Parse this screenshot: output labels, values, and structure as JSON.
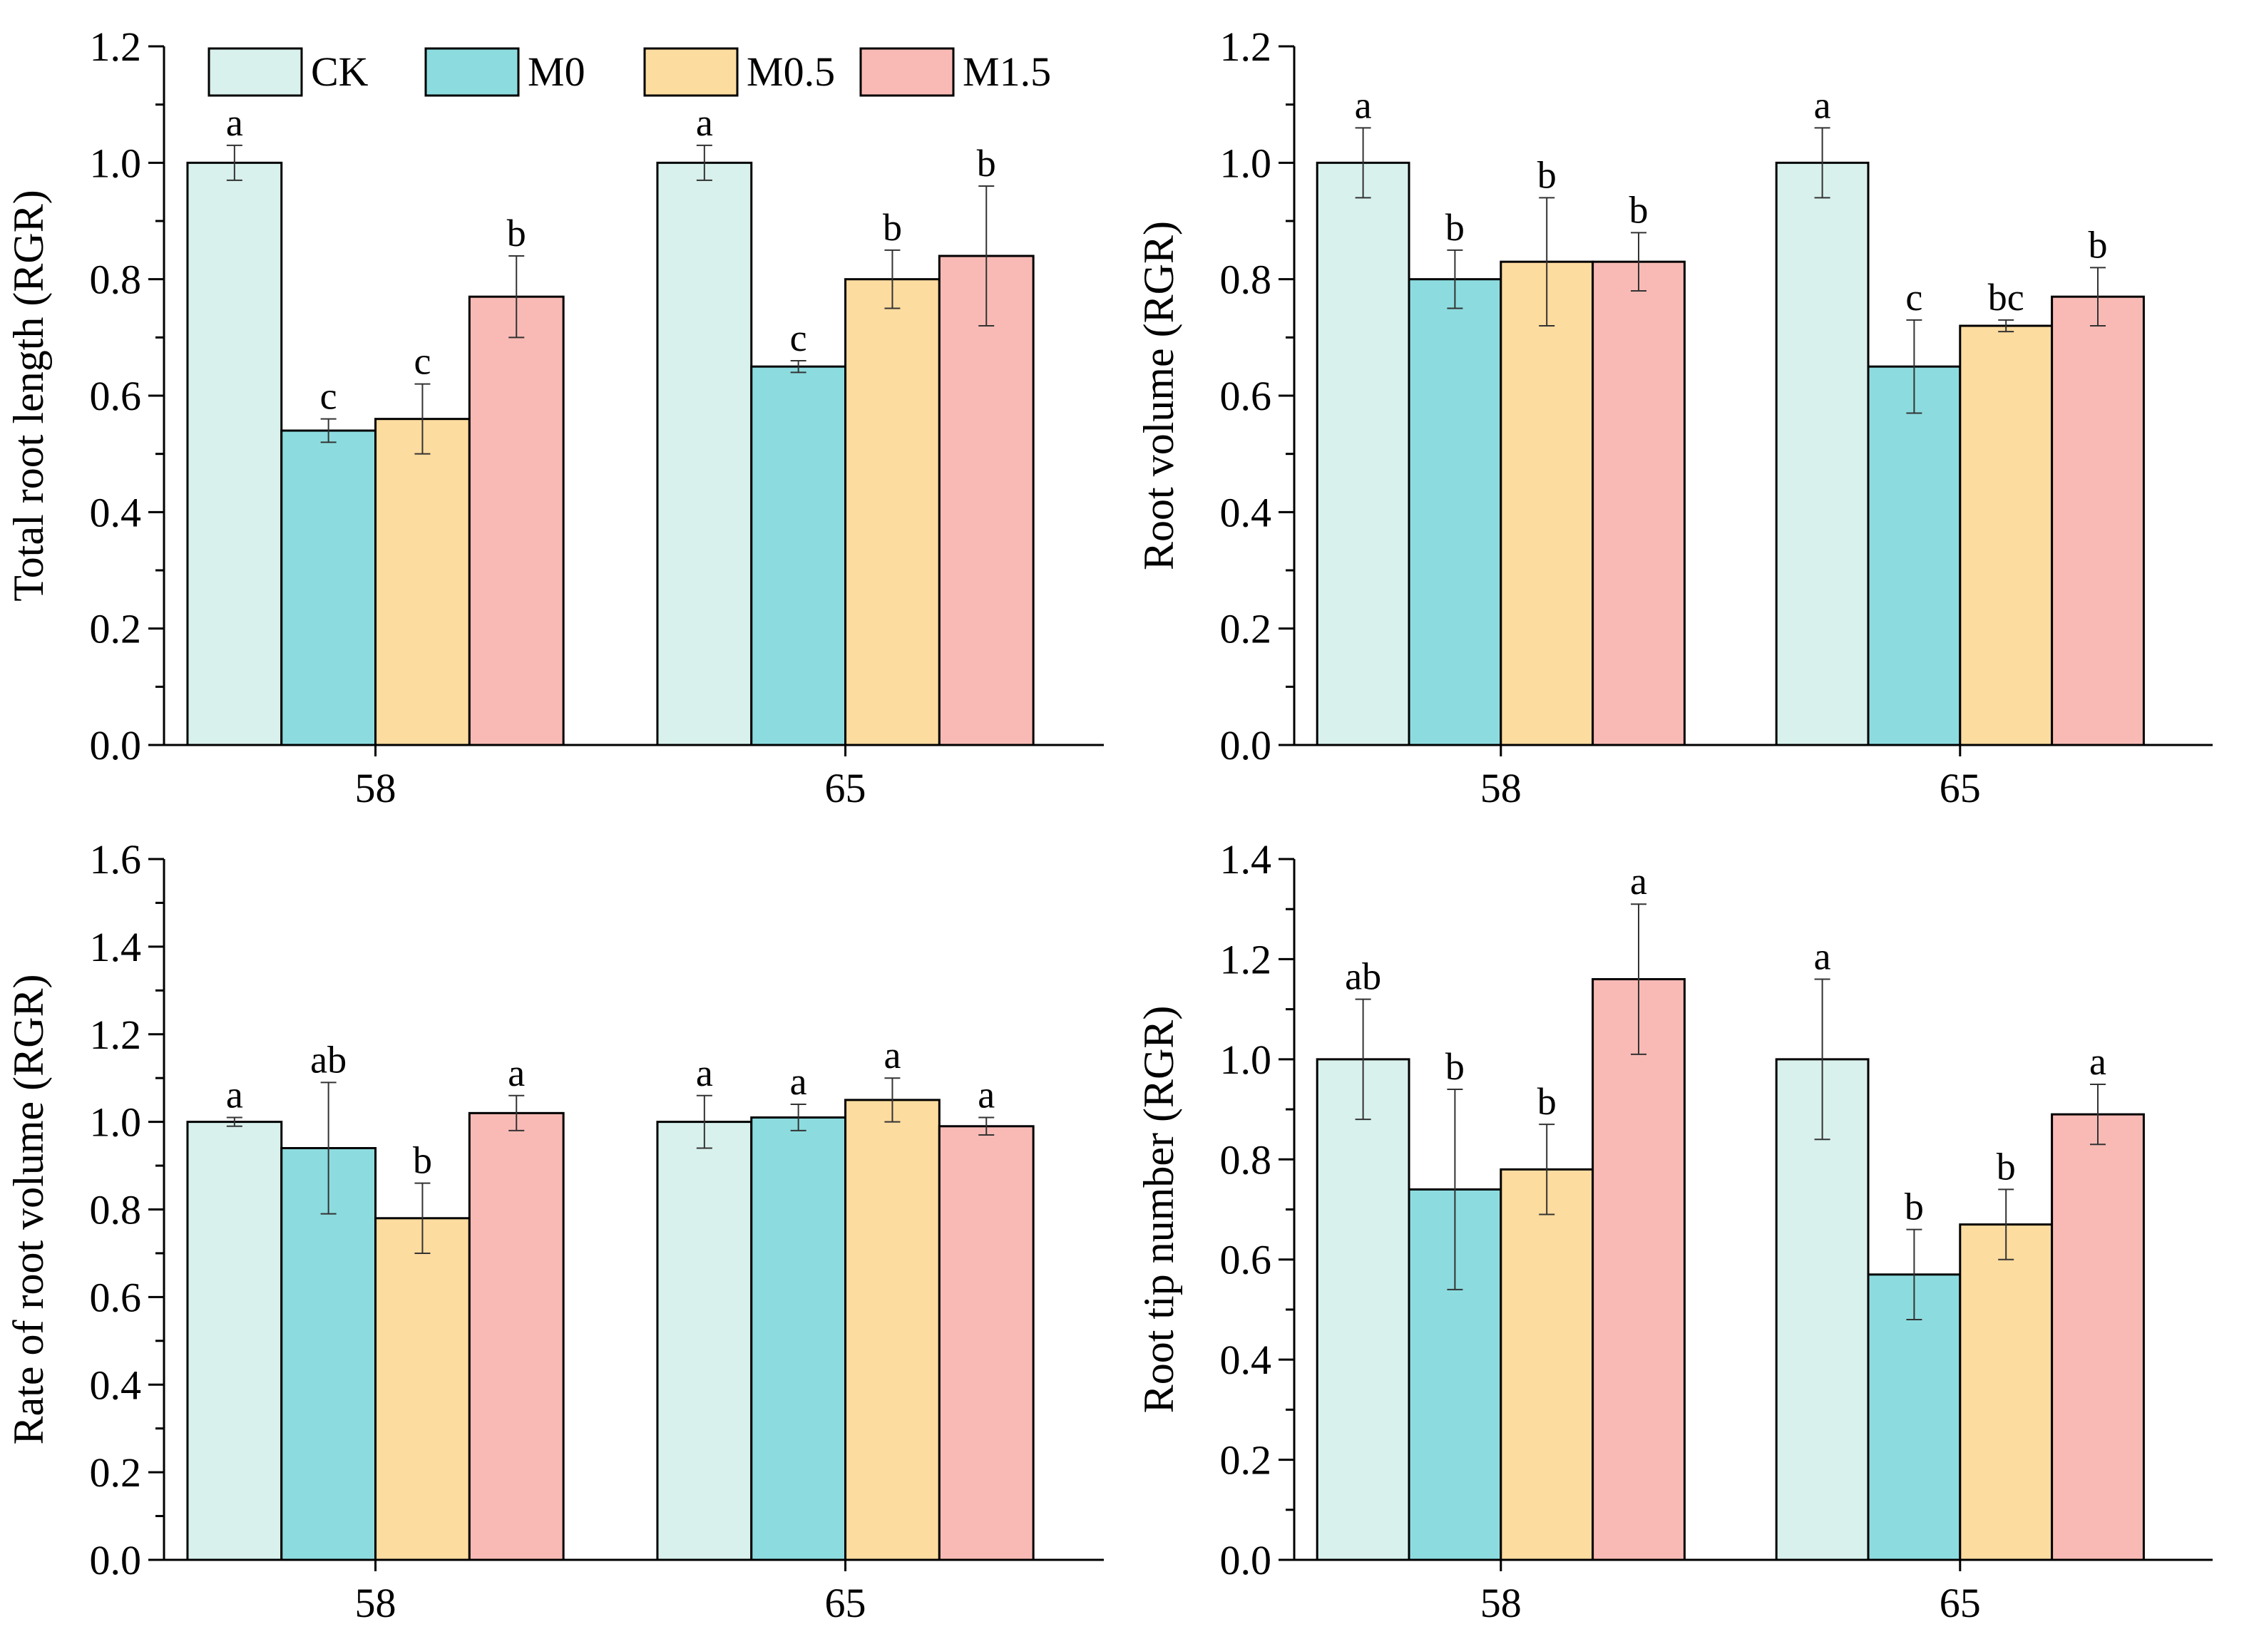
{
  "legend": {
    "items": [
      {
        "name": "CK",
        "color": "#d8f1ec"
      },
      {
        "name": "M0",
        "color": "#8cdcdf"
      },
      {
        "name": "M0.5",
        "color": "#fddc9f"
      },
      {
        "name": "M1.5",
        "color": "#f9bab5"
      }
    ]
  },
  "chart_data": [
    {
      "type": "bar",
      "ylabel": "Total root length (RGR)",
      "ylim": [
        0,
        1.2
      ],
      "yticks": [
        "0.0",
        "0.2",
        "0.4",
        "0.6",
        "0.8",
        "1.0",
        "1.2"
      ],
      "categories": [
        "58",
        "65"
      ],
      "series": [
        {
          "name": "CK",
          "values": [
            1.0,
            1.0
          ],
          "errors": [
            0.03,
            0.03
          ],
          "labels": [
            "a",
            "a"
          ]
        },
        {
          "name": "M0",
          "values": [
            0.54,
            0.65
          ],
          "errors": [
            0.02,
            0.01
          ],
          "labels": [
            "c",
            "c"
          ]
        },
        {
          "name": "M0.5",
          "values": [
            0.56,
            0.8
          ],
          "errors": [
            0.06,
            0.05
          ],
          "labels": [
            "c",
            "b"
          ]
        },
        {
          "name": "M1.5",
          "values": [
            0.77,
            0.84
          ],
          "errors": [
            0.07,
            0.12
          ],
          "labels": [
            "b",
            "b"
          ]
        }
      ]
    },
    {
      "type": "bar",
      "ylabel": "Root volume (RGR)",
      "ylim": [
        0,
        1.2
      ],
      "yticks": [
        "0.0",
        "0.2",
        "0.4",
        "0.6",
        "0.8",
        "1.0",
        "1.2"
      ],
      "categories": [
        "58",
        "65"
      ],
      "series": [
        {
          "name": "CK",
          "values": [
            1.0,
            1.0
          ],
          "errors": [
            0.06,
            0.06
          ],
          "labels": [
            "a",
            "a"
          ]
        },
        {
          "name": "M0",
          "values": [
            0.8,
            0.65
          ],
          "errors": [
            0.05,
            0.08
          ],
          "labels": [
            "b",
            "c"
          ]
        },
        {
          "name": "M0.5",
          "values": [
            0.83,
            0.72
          ],
          "errors": [
            0.11,
            0.01
          ],
          "labels": [
            "b",
            "bc"
          ]
        },
        {
          "name": "M1.5",
          "values": [
            0.83,
            0.77
          ],
          "errors": [
            0.05,
            0.05
          ],
          "labels": [
            "b",
            "b"
          ]
        }
      ]
    },
    {
      "type": "bar",
      "ylabel": "Rate of root volume (RGR)",
      "ylim": [
        0,
        1.6
      ],
      "yticks": [
        "0.0",
        "0.2",
        "0.4",
        "0.6",
        "0.8",
        "1.0",
        "1.2",
        "1.4",
        "1.6"
      ],
      "categories": [
        "58",
        "65"
      ],
      "series": [
        {
          "name": "CK",
          "values": [
            1.0,
            1.0
          ],
          "errors": [
            0.01,
            0.06
          ],
          "labels": [
            "a",
            "a"
          ]
        },
        {
          "name": "M0",
          "values": [
            0.94,
            1.01
          ],
          "errors": [
            0.15,
            0.03
          ],
          "labels": [
            "ab",
            "a"
          ]
        },
        {
          "name": "M0.5",
          "values": [
            0.78,
            1.05
          ],
          "errors": [
            0.08,
            0.05
          ],
          "labels": [
            "b",
            "a"
          ]
        },
        {
          "name": "M1.5",
          "values": [
            1.02,
            0.99
          ],
          "errors": [
            0.04,
            0.02
          ],
          "labels": [
            "a",
            "a"
          ]
        }
      ]
    },
    {
      "type": "bar",
      "ylabel": "Root tip number (RGR)",
      "ylim": [
        0,
        1.4
      ],
      "yticks": [
        "0.0",
        "0.2",
        "0.4",
        "0.6",
        "0.8",
        "1.0",
        "1.2",
        "1.4"
      ],
      "categories": [
        "58",
        "65"
      ],
      "series": [
        {
          "name": "CK",
          "values": [
            1.0,
            1.0
          ],
          "errors": [
            0.12,
            0.16
          ],
          "labels": [
            "ab",
            "a"
          ]
        },
        {
          "name": "M0",
          "values": [
            0.74,
            0.57
          ],
          "errors": [
            0.2,
            0.09
          ],
          "labels": [
            "b",
            "b"
          ]
        },
        {
          "name": "M0.5",
          "values": [
            0.78,
            0.67
          ],
          "errors": [
            0.09,
            0.07
          ],
          "labels": [
            "b",
            "b"
          ]
        },
        {
          "name": "M1.5",
          "values": [
            1.16,
            0.89
          ],
          "errors": [
            0.15,
            0.06
          ],
          "labels": [
            "a",
            "a"
          ]
        }
      ]
    }
  ]
}
